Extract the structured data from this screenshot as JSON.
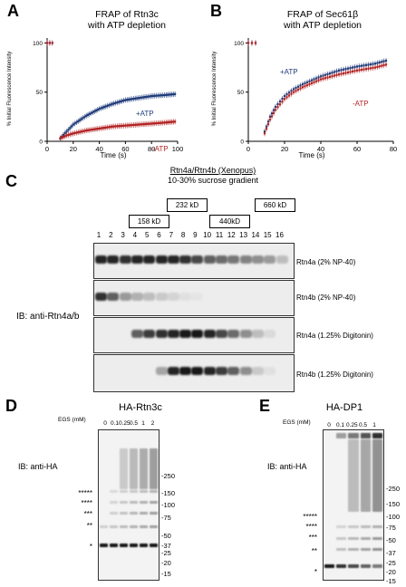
{
  "panelA": {
    "letter": "A",
    "title1": "FRAP of Rtn3c",
    "title2": "with ATP depletion",
    "ylabel": "% Initial Fluorescence Intensity",
    "xlabel": "Time (s)",
    "plus_label": "+ATP",
    "minus_label": "-ATP",
    "plus_color": "#1f3b7a",
    "minus_color": "#b22222"
  },
  "panelB": {
    "letter": "B",
    "title1": "FRAP of Sec61β",
    "title2": "with ATP depletion",
    "ylabel": "% Initial Fluorescence Intensity",
    "xlabel": "Time (s)",
    "plus_label": "+ATP",
    "minus_label": "-ATP",
    "plus_color": "#1f3b7a",
    "minus_color": "#b22222"
  },
  "chart_data": [
    {
      "type": "scatter",
      "title": "FRAP of Rtn3c with ATP depletion",
      "xlabel": "Time (s)",
      "ylabel": "% Initial Fluorescence Intensity",
      "xlim": [
        0,
        100
      ],
      "ylim": [
        0,
        105
      ],
      "xticks": [
        0,
        20,
        40,
        60,
        80,
        100
      ],
      "yticks": [
        0,
        50,
        100
      ],
      "series": [
        {
          "name": "+ATP",
          "x": [
            0,
            2,
            4,
            10,
            15,
            20,
            30,
            40,
            50,
            60,
            70,
            80,
            90,
            98
          ],
          "y": [
            100,
            100,
            100,
            3,
            10,
            17,
            26,
            33,
            38,
            42,
            44,
            46,
            47,
            48
          ]
        },
        {
          "name": "-ATP",
          "x": [
            0,
            2,
            4,
            10,
            15,
            20,
            30,
            40,
            50,
            60,
            70,
            80,
            90,
            98
          ],
          "y": [
            100,
            100,
            100,
            3,
            6,
            8,
            11,
            13,
            15,
            16,
            17,
            18,
            19,
            20
          ]
        }
      ]
    },
    {
      "type": "scatter",
      "title": "FRAP of Sec61β with ATP depletion",
      "xlabel": "Time (s)",
      "ylabel": "% Initial Fluorescence Intensity",
      "xlim": [
        0,
        80
      ],
      "ylim": [
        0,
        105
      ],
      "xticks": [
        0,
        20,
        40,
        60,
        80
      ],
      "yticks": [
        0,
        50,
        100
      ],
      "series": [
        {
          "name": "+ATP",
          "x": [
            0,
            2,
            4,
            9,
            12,
            15,
            20,
            25,
            30,
            40,
            50,
            60,
            70,
            76
          ],
          "y": [
            100,
            100,
            100,
            10,
            25,
            35,
            46,
            53,
            58,
            66,
            72,
            76,
            79,
            82
          ]
        },
        {
          "name": "-ATP",
          "x": [
            0,
            2,
            4,
            9,
            12,
            15,
            20,
            25,
            30,
            40,
            50,
            60,
            70,
            76
          ],
          "y": [
            100,
            100,
            100,
            8,
            22,
            32,
            43,
            50,
            55,
            63,
            68,
            72,
            75,
            78
          ]
        }
      ]
    }
  ],
  "panelC": {
    "letter": "C",
    "title": "Rtn4a/Rtn4b (Xenopus)",
    "subtitle": "10-30% sucrose gradient",
    "markers": [
      "232 kD",
      "660 kD",
      "158 kD",
      "440kD"
    ],
    "lanes": [
      "1",
      "2",
      "3",
      "4",
      "5",
      "6",
      "7",
      "8",
      "9",
      "10",
      "11",
      "12",
      "13",
      "14",
      "15",
      "16"
    ],
    "ib_label": "IB: anti-Rtn4a/b",
    "rows": [
      {
        "label": "Rtn4a (2% NP-40)",
        "intensity": [
          0.85,
          0.85,
          0.8,
          0.85,
          0.85,
          0.85,
          0.85,
          0.8,
          0.7,
          0.6,
          0.55,
          0.5,
          0.45,
          0.4,
          0.35,
          0.2
        ]
      },
      {
        "label": "Rtn4b (2% NP-40)",
        "intensity": [
          0.8,
          0.6,
          0.35,
          0.25,
          0.2,
          0.15,
          0.1,
          0.05,
          0.03,
          0,
          0,
          0,
          0,
          0,
          0,
          0
        ]
      },
      {
        "label": "Rtn4a (1.25% Digitonin)",
        "intensity": [
          0,
          0,
          0,
          0.6,
          0.75,
          0.8,
          0.85,
          0.9,
          0.9,
          0.85,
          0.7,
          0.55,
          0.4,
          0.2,
          0.08,
          0
        ]
      },
      {
        "label": "Rtn4b (1.25% Digitonin)",
        "intensity": [
          0,
          0,
          0,
          0,
          0,
          0.3,
          0.85,
          0.9,
          0.9,
          0.85,
          0.75,
          0.6,
          0.4,
          0.15,
          0.05,
          0
        ]
      }
    ]
  },
  "panelD": {
    "letter": "D",
    "title": "HA-Rtn3c",
    "egs_label": "EGS (mM)",
    "egs_values": [
      "0",
      "0.1",
      "0.25",
      "0.5",
      "1",
      "2"
    ],
    "ib_label": "IB: anti-HA",
    "mw": [
      "250",
      "150",
      "100",
      "75",
      "50",
      "37",
      "25",
      "20",
      "15"
    ],
    "stars": [
      "*****",
      "****",
      "***",
      "**",
      "*"
    ]
  },
  "panelE": {
    "letter": "E",
    "title": "HA-DP1",
    "egs_label": "EGS (mM)",
    "egs_values": [
      "0",
      "0.1",
      "0.25",
      "0.5",
      "1"
    ],
    "ib_label": "IB: anti-HA",
    "mw": [
      "250",
      "150",
      "100",
      "75",
      "50",
      "37",
      "25",
      "20",
      "15"
    ],
    "stars": [
      "*****",
      "****",
      "***",
      "**",
      "*"
    ]
  }
}
